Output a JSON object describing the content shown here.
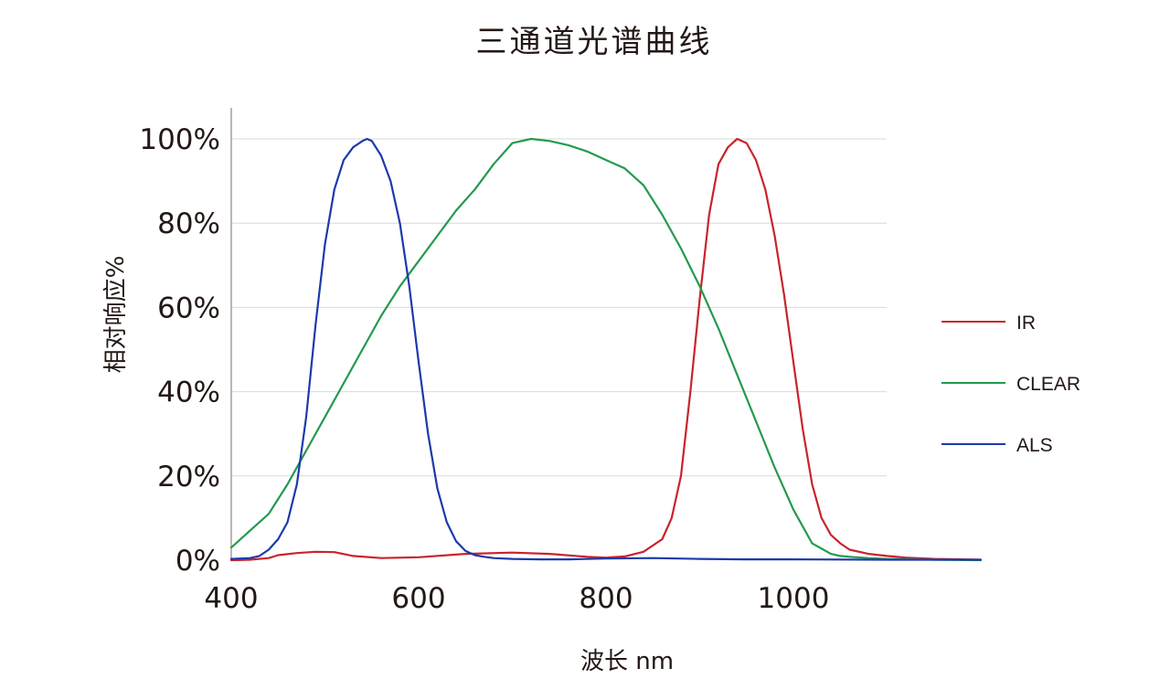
{
  "chart_data": {
    "type": "line",
    "title": "三通道光谱曲线",
    "xlabel": "波长 nm",
    "ylabel": "相对响应%",
    "xlim": [
      400,
      1200
    ],
    "ylim": [
      0,
      100
    ],
    "x_ticks": [
      400,
      600,
      800,
      1000
    ],
    "x_tick_labels": [
      "400",
      "600",
      "800",
      "1000"
    ],
    "y_ticks": [
      0,
      20,
      40,
      60,
      80,
      100
    ],
    "y_tick_labels": [
      "0%",
      "20%",
      "40%",
      "60%",
      "80%",
      "100%"
    ],
    "grid": "horizontal",
    "legend_position": "right",
    "series": [
      {
        "name": "IR",
        "color": "#c8242b",
        "x": [
          400,
          420,
          440,
          450,
          470,
          490,
          510,
          530,
          560,
          600,
          650,
          700,
          740,
          780,
          800,
          820,
          840,
          860,
          870,
          880,
          890,
          900,
          910,
          920,
          930,
          940,
          950,
          960,
          970,
          980,
          990,
          1000,
          1010,
          1020,
          1030,
          1040,
          1050,
          1060,
          1080,
          1100,
          1120,
          1150,
          1180,
          1200
        ],
        "values": [
          0,
          0.1,
          0.5,
          1.2,
          1.7,
          2,
          1.9,
          1,
          0.5,
          0.7,
          1.5,
          1.8,
          1.5,
          0.8,
          0.6,
          0.9,
          2,
          5,
          10,
          20,
          40,
          62,
          82,
          94,
          98,
          100,
          99,
          95,
          88,
          77,
          63,
          47,
          31,
          18,
          10,
          6,
          4,
          2.5,
          1.5,
          1,
          0.6,
          0.3,
          0.2,
          0.1
        ]
      },
      {
        "name": "CLEAR",
        "color": "#239a4e",
        "x": [
          400,
          420,
          440,
          460,
          480,
          500,
          520,
          540,
          560,
          580,
          600,
          620,
          640,
          660,
          680,
          700,
          720,
          740,
          760,
          780,
          800,
          820,
          840,
          860,
          880,
          900,
          920,
          940,
          960,
          980,
          1000,
          1020,
          1040,
          1050,
          1060,
          1080,
          1100,
          1150,
          1200
        ],
        "values": [
          3,
          7,
          11,
          18,
          26,
          34,
          42,
          50,
          58,
          65,
          71,
          77,
          83,
          88,
          94,
          99,
          100,
          99.5,
          98.5,
          97,
          95,
          93,
          89,
          82,
          74,
          65,
          55,
          44,
          33,
          22,
          12,
          4,
          1.5,
          1,
          0.8,
          0.5,
          0.3,
          0.1,
          0
        ]
      },
      {
        "name": "ALS",
        "color": "#1c3aa9",
        "x": [
          400,
          420,
          430,
          440,
          450,
          460,
          470,
          480,
          490,
          500,
          510,
          520,
          530,
          540,
          545,
          550,
          560,
          570,
          580,
          590,
          600,
          610,
          620,
          630,
          640,
          650,
          660,
          670,
          680,
          700,
          730,
          760,
          800,
          850,
          900,
          950,
          1000,
          1100,
          1200
        ],
        "values": [
          0.3,
          0.5,
          1,
          2.5,
          5,
          9,
          18,
          34,
          56,
          75,
          88,
          95,
          98,
          99.5,
          100,
          99.5,
          96,
          90,
          80,
          65,
          47,
          30,
          17,
          9,
          4.5,
          2.2,
          1.2,
          0.8,
          0.5,
          0.3,
          0.2,
          0.2,
          0.4,
          0.5,
          0.3,
          0.2,
          0.2,
          0.1,
          0.1
        ]
      }
    ]
  }
}
